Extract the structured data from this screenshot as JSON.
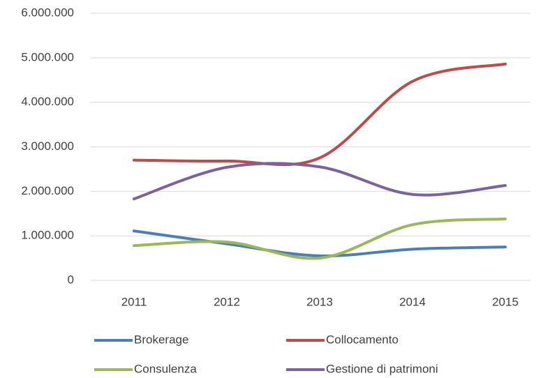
{
  "chart_data": {
    "type": "line",
    "categories": [
      "2011",
      "2012",
      "2013",
      "2014",
      "2015"
    ],
    "series": [
      {
        "name": "Brokerage",
        "color": "#4a7ebb",
        "values": [
          1110000,
          820000,
          550000,
          700000,
          750000
        ]
      },
      {
        "name": "Collocamento",
        "color": "#be4b48",
        "values": [
          2700000,
          2680000,
          2750000,
          4470000,
          4860000
        ]
      },
      {
        "name": "Consulenza",
        "color": "#98b954",
        "values": [
          780000,
          860000,
          500000,
          1250000,
          1380000
        ]
      },
      {
        "name": "Gestione di patrimoni",
        "color": "#7d60a0",
        "values": [
          1830000,
          2540000,
          2550000,
          1930000,
          2130000
        ]
      }
    ],
    "ylim": [
      0,
      6000000
    ],
    "yticks": [
      0,
      {
        "value": 1000000,
        "label": "1.000.000"
      },
      {
        "value": 2000000,
        "label": "2.000.000"
      },
      {
        "value": 3000000,
        "label": "3.000.000"
      },
      {
        "value": 4000000,
        "label": "4.000.000"
      },
      {
        "value": 5000000,
        "label": "5.000.000"
      },
      {
        "value": 6000000,
        "label": "6.000.000"
      }
    ],
    "grid": true,
    "smooth": true,
    "legend": "bottom"
  }
}
